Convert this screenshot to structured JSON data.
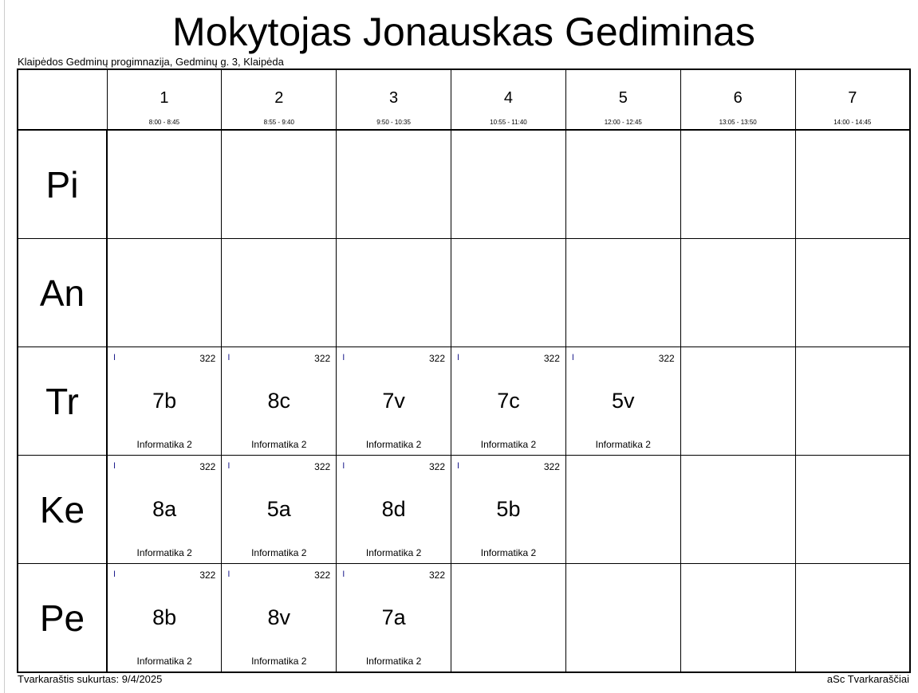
{
  "title": "Mokytojas Jonauskas Gediminas",
  "school": "Klaipėdos Gedminų progimnazija, Gedminų g. 3, Klaipėda",
  "periods": [
    {
      "n": "1",
      "t": "8:00 - 8:45"
    },
    {
      "n": "2",
      "t": "8:55 - 9:40"
    },
    {
      "n": "3",
      "t": "9:50 - 10:35"
    },
    {
      "n": "4",
      "t": "10:55 - 11:40"
    },
    {
      "n": "5",
      "t": "12:00 - 12:45"
    },
    {
      "n": "6",
      "t": "13:05 - 13:50"
    },
    {
      "n": "7",
      "t": "14:00 - 14:45"
    }
  ],
  "days": [
    {
      "name": "Pi",
      "lessons": []
    },
    {
      "name": "An",
      "lessons": []
    },
    {
      "name": "Tr",
      "lessons": [
        {
          "group": "I",
          "room": "322",
          "class": "7b",
          "subject": "Informatika 2"
        },
        {
          "group": "I",
          "room": "322",
          "class": "8c",
          "subject": "Informatika 2"
        },
        {
          "group": "I",
          "room": "322",
          "class": "7v",
          "subject": "Informatika 2"
        },
        {
          "group": "I",
          "room": "322",
          "class": "7c",
          "subject": "Informatika 2"
        },
        {
          "group": "I",
          "room": "322",
          "class": "5v",
          "subject": "Informatika 2"
        }
      ]
    },
    {
      "name": "Ke",
      "lessons": [
        {
          "group": "I",
          "room": "322",
          "class": "8a",
          "subject": "Informatika 2"
        },
        {
          "group": "I",
          "room": "322",
          "class": "5a",
          "subject": "Informatika 2"
        },
        {
          "group": "I",
          "room": "322",
          "class": "8d",
          "subject": "Informatika 2"
        },
        {
          "group": "I",
          "room": "322",
          "class": "5b",
          "subject": "Informatika 2"
        }
      ]
    },
    {
      "name": "Pe",
      "lessons": [
        {
          "group": "I",
          "room": "322",
          "class": "8b",
          "subject": "Informatika 2"
        },
        {
          "group": "I",
          "room": "322",
          "class": "8v",
          "subject": "Informatika 2"
        },
        {
          "group": "I",
          "room": "322",
          "class": "7a",
          "subject": "Informatika 2"
        }
      ]
    }
  ],
  "footer": {
    "created": "Tvarkaraštis sukurtas: 9/4/2025",
    "brand": "aSc Tvarkaraščiai"
  },
  "colors": {
    "group": "#1a1a8c"
  }
}
